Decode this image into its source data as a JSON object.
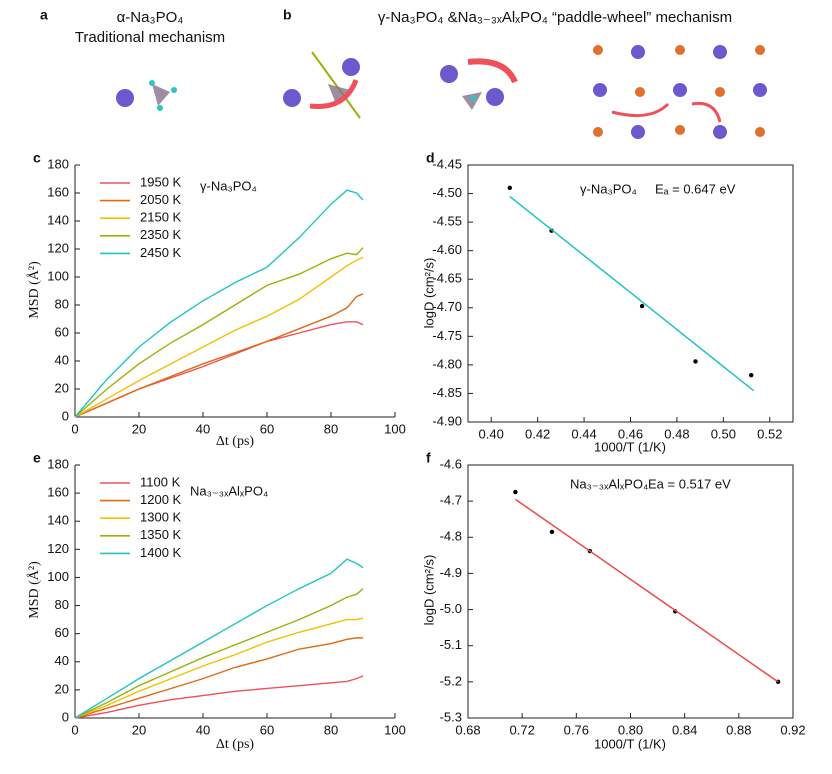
{
  "header": {
    "panel_a": {
      "label": "a",
      "title": "α-Na₃PO₄",
      "subtitle": "Traditional mechanism"
    },
    "panel_b": {
      "label": "b",
      "title": "γ-Na₃PO₄ &Na₃₋₃ₓAlₓPO₄ “paddle-wheel” mechanism"
    }
  },
  "chart_data": [
    {
      "type": "line",
      "panel_label": "c",
      "x_label": "Δt (ps)",
      "y_label": "MSD (Å²)",
      "annotations": [
        "γ-Na₃PO₄"
      ],
      "legend": "upper left",
      "x": [
        0,
        10,
        20,
        30,
        40,
        50,
        60,
        70,
        80,
        85,
        88,
        90
      ],
      "series": [
        {
          "name": "1950 K",
          "color": "#f0505a",
          "values": [
            0,
            10,
            20,
            28,
            36,
            45,
            54,
            60,
            66,
            68,
            68,
            66
          ]
        },
        {
          "name": "2050 K",
          "color": "#e06a10",
          "values": [
            0,
            10,
            20,
            29,
            38,
            46,
            54,
            63,
            72,
            78,
            86,
            88
          ]
        },
        {
          "name": "2150 K",
          "color": "#f2c000",
          "values": [
            0,
            13,
            26,
            38,
            50,
            62,
            72,
            84,
            100,
            108,
            112,
            114
          ]
        },
        {
          "name": "2350 K",
          "color": "#9ab20a",
          "values": [
            0,
            20,
            38,
            53,
            66,
            80,
            94,
            102,
            113,
            117,
            116,
            121
          ]
        },
        {
          "name": "2450 K",
          "color": "#1fc4c4",
          "values": [
            0,
            27,
            50,
            68,
            83,
            96,
            107,
            128,
            152,
            162,
            160,
            155
          ]
        }
      ],
      "xlim": [
        0,
        100
      ],
      "xticks": [
        0,
        20,
        40,
        60,
        80,
        100
      ],
      "ylim": [
        0,
        180
      ],
      "yticks": [
        0,
        20,
        40,
        60,
        80,
        100,
        120,
        140,
        160,
        180
      ]
    },
    {
      "type": "scatter",
      "panel_label": "d",
      "x_label": "1000/T (1/K)",
      "y_label": "logD (cm²/s)",
      "annotations": [
        "γ-Na₃PO₄",
        "Eₐ = 0.647 eV"
      ],
      "series": [
        {
          "color": "#000000",
          "x": [
            0.408,
            0.426,
            0.465,
            0.488,
            0.512
          ],
          "values": [
            -4.49,
            -4.565,
            -4.697,
            -4.794,
            -4.818
          ]
        },
        {
          "color": "#20c0c8",
          "mode": "line",
          "x": [
            0.408,
            0.513
          ],
          "values": [
            -4.505,
            -4.845
          ]
        }
      ],
      "xlim": [
        0.39,
        0.53
      ],
      "xticks": [
        {
          "value": 0.4,
          "label": "0.40"
        },
        0.42,
        0.44,
        0.46,
        0.48,
        {
          "value": 0.5,
          "label": "0.50"
        },
        0.52
      ],
      "ylim": [
        -4.9,
        -4.45
      ],
      "yticks": [
        -4.45,
        {
          "value": -4.5,
          "label": "-4.50"
        },
        -4.55,
        {
          "value": -4.6,
          "label": "-4.60"
        },
        -4.65,
        {
          "value": -4.7,
          "label": "-4.70"
        },
        -4.75,
        {
          "value": -4.8,
          "label": "-4.80"
        },
        -4.85,
        {
          "value": -4.9,
          "label": "-4.90"
        }
      ]
    },
    {
      "type": "line",
      "panel_label": "e",
      "x_label": "Δt (ps)",
      "y_label": "MSD (Å²)",
      "annotations": [
        "Na₃₋₃ₓAlₓPO₄"
      ],
      "legend": "upper left",
      "x": [
        0,
        10,
        20,
        30,
        40,
        50,
        60,
        70,
        80,
        85,
        88,
        90
      ],
      "series": [
        {
          "name": "1100 K",
          "color": "#f0505a",
          "values": [
            0,
            4,
            9,
            13,
            16,
            19,
            21,
            23,
            25,
            26,
            28,
            30
          ]
        },
        {
          "name": "1200 K",
          "color": "#e06a10",
          "values": [
            0,
            7,
            14,
            21,
            28,
            36,
            42,
            49,
            53,
            56,
            57,
            57
          ]
        },
        {
          "name": "1300 K",
          "color": "#f2c000",
          "values": [
            0,
            9,
            19,
            28,
            37,
            45,
            54,
            61,
            67,
            70,
            70,
            71
          ]
        },
        {
          "name": "1350 K",
          "color": "#9ab20a",
          "values": [
            0,
            11,
            23,
            33,
            43,
            52,
            61,
            70,
            80,
            86,
            88,
            92
          ]
        },
        {
          "name": "1400 K",
          "color": "#1fc4c4",
          "values": [
            0,
            14,
            28,
            41,
            54,
            67,
            80,
            92,
            103,
            113,
            110,
            107
          ]
        }
      ],
      "xlim": [
        0,
        100
      ],
      "xticks": [
        0,
        20,
        40,
        60,
        80,
        100
      ],
      "ylim": [
        0,
        180
      ],
      "yticks": [
        0,
        20,
        40,
        60,
        80,
        100,
        120,
        140,
        160,
        180
      ]
    },
    {
      "type": "scatter",
      "panel_label": "f",
      "x_label": "1000/T (1/K)",
      "y_label": "logD (cm²/s)",
      "annotations": [
        "Na₃₋₃ₓAlₓPO₄",
        "Ea = 0.517 eV"
      ],
      "series": [
        {
          "color": "#000000",
          "x": [
            0.715,
            0.742,
            0.77,
            0.833,
            0.909
          ],
          "values": [
            -4.675,
            -4.785,
            -4.838,
            -5.005,
            -5.2
          ]
        },
        {
          "color": "#f04848",
          "mode": "line",
          "x": [
            0.715,
            0.909
          ],
          "values": [
            -4.695,
            -5.2
          ]
        }
      ],
      "xlim": [
        0.68,
        0.92
      ],
      "xticks": [
        0.68,
        0.72,
        0.76,
        {
          "value": 0.8,
          "label": "0.80"
        },
        0.84,
        0.88,
        0.92
      ],
      "ylim": [
        -5.3,
        -4.6
      ],
      "yticks": [
        -4.6,
        -4.7,
        -4.8,
        -4.9,
        {
          "value": -5,
          "label": "-5.0"
        },
        -5.1,
        -5.2,
        -5.3
      ]
    }
  ]
}
